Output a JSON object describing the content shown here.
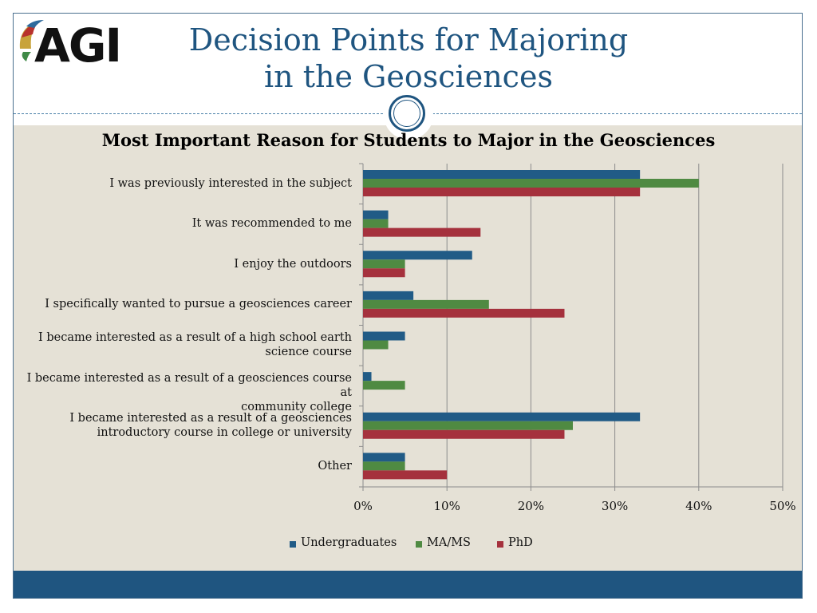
{
  "header": {
    "logo_text": "AGI",
    "title_line1": "Decision Points for Majoring",
    "title_line2": "in the Geosciences"
  },
  "colors": {
    "title": "#1f5580",
    "footer": "#1f5580",
    "content_background": "#e5e1d6",
    "undergraduates": "#215b86",
    "ma_ms": "#4f8a42",
    "phd": "#a5313d"
  },
  "chart_data": {
    "type": "bar",
    "orientation": "horizontal",
    "title": "Most Important Reason for Students to Major in the Geosciences",
    "categories": [
      [
        "I was previously interested in the subject"
      ],
      [
        "It was recommended to me"
      ],
      [
        "I enjoy the outdoors"
      ],
      [
        "I specifically wanted to pursue a geosciences career"
      ],
      [
        "I became interested as a result of a high school earth",
        "science course"
      ],
      [
        "I became interested as a result of a geosciences course at",
        "community college"
      ],
      [
        "I became interested as a result of a geosciences",
        "introductory course in college or university"
      ],
      [
        "Other"
      ]
    ],
    "series": [
      {
        "name": "Undergraduates",
        "color": "#215b86",
        "values": [
          33,
          3,
          13,
          6,
          5,
          1,
          33,
          5
        ]
      },
      {
        "name": "MA/MS",
        "color": "#4f8a42",
        "values": [
          40,
          3,
          5,
          15,
          3,
          5,
          25,
          5
        ]
      },
      {
        "name": "PhD",
        "color": "#a5313d",
        "values": [
          33,
          14,
          5,
          24,
          0,
          0,
          24,
          10
        ]
      }
    ],
    "xlim": [
      0,
      50
    ],
    "xticks": [
      "0%",
      "10%",
      "20%",
      "30%",
      "40%",
      "50%"
    ],
    "grid": true,
    "legend": "bottom"
  }
}
